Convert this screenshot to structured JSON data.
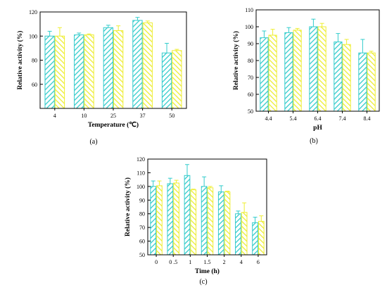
{
  "chart_data": [
    {
      "type": "bar",
      "panel_label": "(a)",
      "xlabel": "Temperature (℃)",
      "ylabel": "Relative activity (%)",
      "ylim": [
        40,
        120
      ],
      "yticks": [
        60,
        80,
        100,
        120
      ],
      "categories": [
        "4",
        "10",
        "25",
        "37",
        "50"
      ],
      "series": [
        {
          "color": "#33cccc",
          "values": [
            100,
            101,
            107,
            113,
            86
          ],
          "errors": [
            4,
            1.5,
            2,
            2.5,
            8
          ]
        },
        {
          "color": "#eeee33",
          "values": [
            100,
            101,
            104.5,
            111,
            88
          ],
          "errors": [
            7,
            0.8,
            4,
            1.5,
            1
          ]
        }
      ]
    },
    {
      "type": "bar",
      "panel_label": "(b)",
      "xlabel": "pH",
      "ylabel": "Relative activity (%)",
      "ylim": [
        50,
        110
      ],
      "yticks": [
        50,
        60,
        70,
        80,
        90,
        100,
        110
      ],
      "categories": [
        "4.4",
        "5.4",
        "6.4",
        "7.4",
        "8.4"
      ],
      "series": [
        {
          "color": "#33cccc",
          "values": [
            93.5,
            96.5,
            100,
            91,
            84.5
          ],
          "errors": [
            4,
            3,
            4.5,
            5,
            8
          ]
        },
        {
          "color": "#eeee33",
          "values": [
            95,
            98,
            100,
            89.5,
            84.5
          ],
          "errors": [
            3.5,
            1,
            2,
            3,
            1
          ]
        }
      ]
    },
    {
      "type": "bar",
      "panel_label": "(c)",
      "xlabel": "Time (h)",
      "ylabel": "Relative activity (%)",
      "ylim": [
        50,
        120
      ],
      "yticks": [
        50,
        60,
        70,
        80,
        90,
        100,
        110,
        120
      ],
      "categories": [
        "0",
        "0 .5",
        "1",
        "1.5",
        "2",
        "4",
        "6"
      ],
      "series": [
        {
          "color": "#33cccc",
          "values": [
            100,
            102,
            108,
            100,
            96,
            80,
            73.5
          ],
          "errors": [
            4,
            4,
            8,
            7,
            4.5,
            2,
            4
          ]
        },
        {
          "color": "#eeee33",
          "values": [
            100.5,
            102.5,
            97.5,
            99,
            96,
            81,
            74.5
          ],
          "errors": [
            3.5,
            2,
            0.5,
            1,
            0.5,
            7,
            4
          ]
        }
      ]
    }
  ]
}
